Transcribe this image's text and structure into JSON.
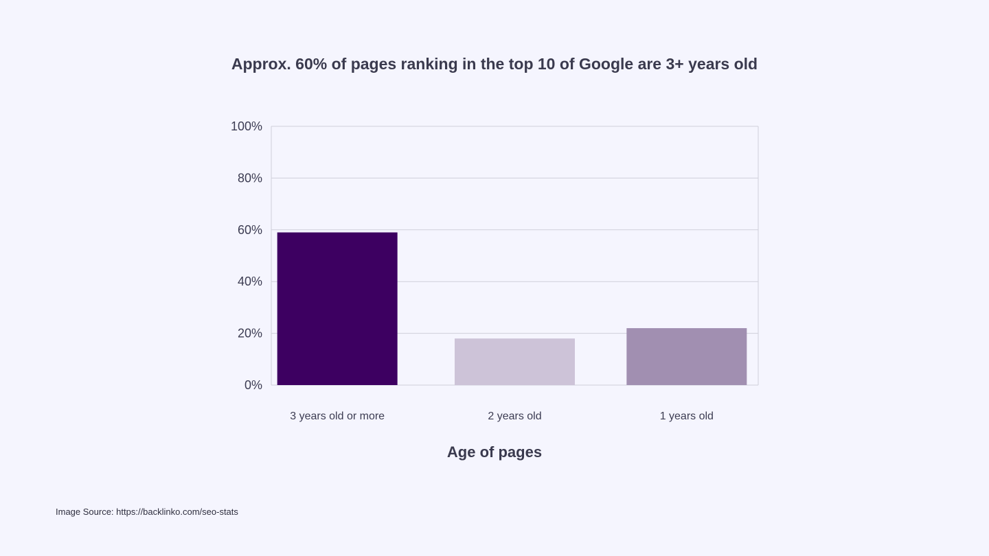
{
  "chart_data": {
    "type": "bar",
    "title": "Approx. 60% of pages ranking in the top 10 of Google are 3+ years old",
    "categories": [
      "3 years old or more",
      "2 years old",
      "1 years old"
    ],
    "values": [
      59,
      18,
      22
    ],
    "xlabel": "Age of pages",
    "ylabel": "",
    "ylim": [
      0,
      100
    ],
    "yticks": [
      0,
      20,
      40,
      60,
      80,
      100
    ],
    "ytick_labels": [
      "0%",
      "20%",
      "40%",
      "60%",
      "80%",
      "100%"
    ],
    "grid": true,
    "legend": "none",
    "colors": [
      "#3d0061",
      "#cdc3d8",
      "#a18fb1"
    ]
  },
  "footer": {
    "source": "Image Source: https://backlinko.com/seo-stats"
  }
}
